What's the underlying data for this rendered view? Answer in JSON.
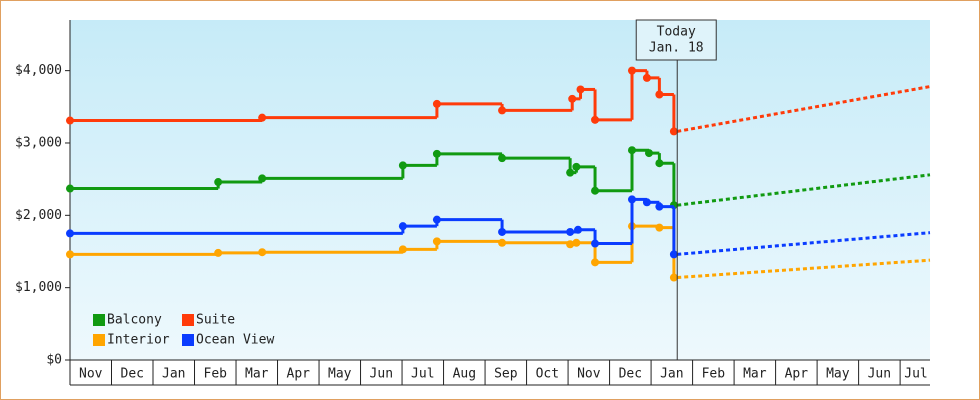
{
  "chart_data": {
    "type": "step-line",
    "xlim": [
      0,
      20.72
    ],
    "ylim": [
      0,
      4700
    ],
    "yticks": [
      {
        "value": 0,
        "label": "$0"
      },
      {
        "value": 1000,
        "label": "$1,000"
      },
      {
        "value": 2000,
        "label": "$2,000"
      },
      {
        "value": 3000,
        "label": "$3,000"
      },
      {
        "value": 4000,
        "label": "$4,000"
      }
    ],
    "xticks": [
      {
        "value": 0.5,
        "label": "Nov"
      },
      {
        "value": 1.5,
        "label": "Dec"
      },
      {
        "value": 2.5,
        "label": "Jan"
      },
      {
        "value": 3.5,
        "label": "Feb"
      },
      {
        "value": 4.5,
        "label": "Mar"
      },
      {
        "value": 5.5,
        "label": "Apr"
      },
      {
        "value": 6.5,
        "label": "May"
      },
      {
        "value": 7.5,
        "label": "Jun"
      },
      {
        "value": 8.5,
        "label": "Jul"
      },
      {
        "value": 9.5,
        "label": "Aug"
      },
      {
        "value": 10.5,
        "label": "Sep"
      },
      {
        "value": 11.5,
        "label": "Oct"
      },
      {
        "value": 12.5,
        "label": "Nov"
      },
      {
        "value": 13.5,
        "label": "Dec"
      },
      {
        "value": 14.5,
        "label": "Jan"
      },
      {
        "value": 15.5,
        "label": "Feb"
      },
      {
        "value": 16.5,
        "label": "Mar"
      },
      {
        "value": 17.5,
        "label": "Apr"
      },
      {
        "value": 18.5,
        "label": "May"
      },
      {
        "value": 19.5,
        "label": "Jun"
      },
      {
        "value": 20.5,
        "label": "Jul"
      }
    ],
    "annotation": {
      "lines": [
        "Today",
        "Jan. 18"
      ],
      "x": 14.63
    },
    "series": [
      {
        "name": "Balcony",
        "color": "#119a11",
        "x": [
          0,
          3.57,
          4.63,
          8.02,
          8.84,
          10.41,
          12.05,
          12.2,
          12.65,
          13.54,
          13.95,
          14.2,
          14.55
        ],
        "values": [
          2370,
          2460,
          2510,
          2690,
          2850,
          2790,
          2590,
          2670,
          2340,
          2900,
          2860,
          2720,
          2140
        ],
        "forecast_x": [
          14.63,
          20.72
        ],
        "forecast_values": [
          2140,
          2560
        ]
      },
      {
        "name": "Suite",
        "color": "#ff3b0a",
        "x": [
          0,
          4.63,
          8.84,
          10.41,
          12.1,
          12.3,
          12.65,
          13.54,
          13.9,
          14.2,
          14.55
        ],
        "values": [
          3310,
          3350,
          3540,
          3450,
          3610,
          3740,
          3320,
          4000,
          3900,
          3670,
          3160
        ],
        "forecast_x": [
          14.63,
          20.72
        ],
        "forecast_values": [
          3160,
          3780
        ]
      },
      {
        "name": "Interior",
        "color": "#ffa500",
        "x": [
          0,
          3.57,
          4.63,
          8.02,
          8.84,
          10.41,
          12.05,
          12.2,
          12.65,
          13.54,
          14.2,
          14.55
        ],
        "values": [
          1460,
          1480,
          1490,
          1530,
          1640,
          1620,
          1600,
          1620,
          1350,
          1850,
          1830,
          1140
        ],
        "forecast_x": [
          14.63,
          20.72
        ],
        "forecast_values": [
          1140,
          1380
        ]
      },
      {
        "name": "Ocean View",
        "color": "#0a3cff",
        "x": [
          0,
          8.02,
          8.84,
          10.41,
          12.05,
          12.24,
          12.65,
          13.54,
          13.9,
          14.2,
          14.55
        ],
        "values": [
          1750,
          1850,
          1940,
          1770,
          1770,
          1800,
          1610,
          2220,
          2180,
          2120,
          1460
        ],
        "forecast_x": [
          14.63,
          20.72
        ],
        "forecast_values": [
          1460,
          1760
        ]
      }
    ]
  }
}
